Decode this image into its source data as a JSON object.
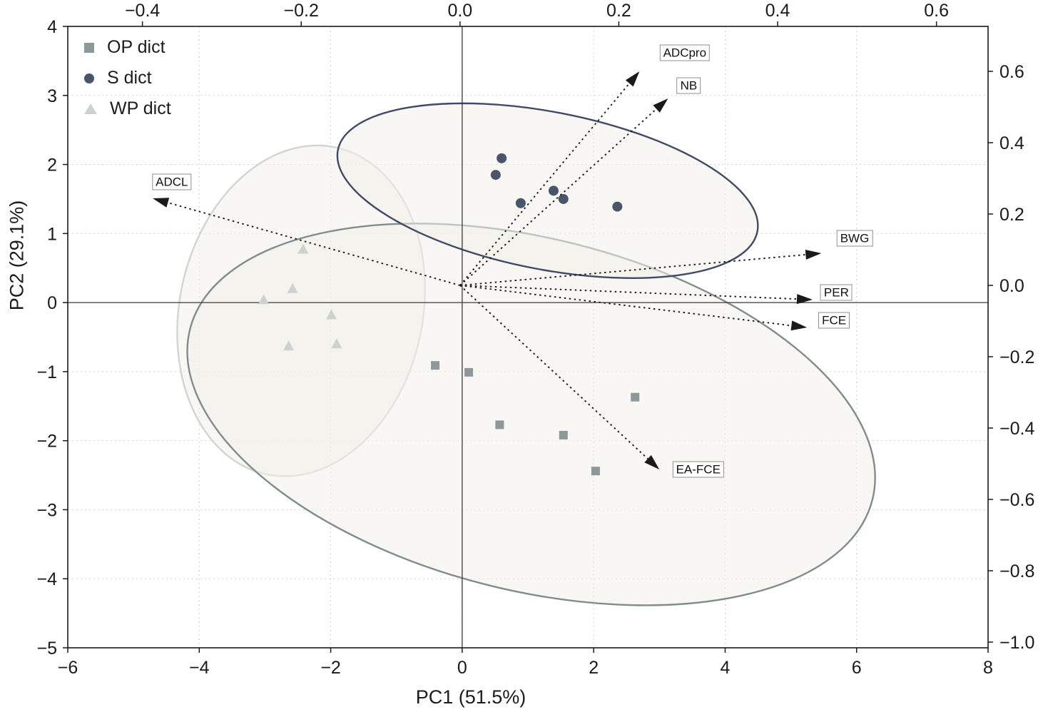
{
  "chart_data": {
    "type": "scatter",
    "title": "",
    "xlabel": "PC1 (51.5%)",
    "ylabel": "PC2 (29.1%)",
    "xlim": [
      -6,
      8
    ],
    "ylim": [
      -5,
      4
    ],
    "x_ticks": [
      -6,
      -4,
      -2,
      0,
      2,
      4,
      6,
      8
    ],
    "y_ticks": [
      4,
      3,
      2,
      1,
      0,
      -1,
      -2,
      -3,
      -4,
      -5
    ],
    "secondary_xlim": [
      -0.494,
      0.665
    ],
    "secondary_ylim": [
      -1.016,
      0.726
    ],
    "secondary_x_ticks": [
      -0.4,
      -0.2,
      0.0,
      0.2,
      0.4,
      0.6
    ],
    "secondary_y_ticks": [
      0.6,
      0.4,
      0.2,
      0.0,
      -0.2,
      -0.4,
      -0.6,
      -0.8,
      -1.0
    ],
    "grid": true,
    "legend_position": "top-left",
    "series": [
      {
        "name": "OP dict",
        "marker": "square",
        "color": "#8d989b",
        "points": [
          [
            -0.41,
            -0.91
          ],
          [
            0.1,
            -1.01
          ],
          [
            2.63,
            -1.37
          ],
          [
            0.57,
            -1.77
          ],
          [
            1.54,
            -1.92
          ],
          [
            2.03,
            -2.44
          ]
        ]
      },
      {
        "name": "S dict",
        "marker": "circle",
        "color": "#4a5569",
        "points": [
          [
            0.6,
            2.09
          ],
          [
            0.51,
            1.85
          ],
          [
            0.89,
            1.44
          ],
          [
            1.39,
            1.62
          ],
          [
            1.54,
            1.5
          ],
          [
            2.36,
            1.39
          ]
        ]
      },
      {
        "name": "WP dict",
        "marker": "triangle",
        "color": "#ccd3cf",
        "points": [
          [
            -2.42,
            0.77
          ],
          [
            -2.58,
            0.2
          ],
          [
            -3.02,
            0.04
          ],
          [
            -1.99,
            -0.18
          ],
          [
            -2.64,
            -0.63
          ],
          [
            -1.91,
            -0.6
          ]
        ]
      }
    ],
    "loadings": [
      {
        "label": "ADCpro",
        "x": 0.226,
        "y": 0.6,
        "label_x": 0.283,
        "label_y": 0.652
      },
      {
        "label": "NB",
        "x": 0.262,
        "y": 0.524,
        "label_x": 0.288,
        "label_y": 0.56
      },
      {
        "label": "ADCL",
        "x": -0.387,
        "y": 0.244,
        "label_x": -0.363,
        "label_y": 0.29
      },
      {
        "label": "BWG",
        "x": 0.455,
        "y": 0.09,
        "label_x": 0.497,
        "label_y": 0.132
      },
      {
        "label": "PER",
        "x": 0.444,
        "y": -0.04,
        "label_x": 0.474,
        "label_y": -0.02
      },
      {
        "label": "FCE",
        "x": 0.437,
        "y": -0.118,
        "label_x": 0.471,
        "label_y": -0.098
      },
      {
        "label": "EA-FCE",
        "x": 0.251,
        "y": -0.516,
        "label_x": 0.3,
        "label_y": -0.516
      }
    ],
    "ellipses": [
      {
        "group": "WP dict",
        "cx": -2.45,
        "cy": -0.12,
        "rx": 1.85,
        "ry": 2.42,
        "rotation_deg": 12,
        "stroke": "#d0d6d2"
      },
      {
        "group": "OP dict",
        "cx": 1.05,
        "cy": -1.62,
        "rx": 5.35,
        "ry": 2.55,
        "rotation_deg": 14,
        "stroke": "#7f8e8c"
      },
      {
        "group": "S dict",
        "cx": 1.3,
        "cy": 1.62,
        "rx": 3.25,
        "ry": 1.14,
        "rotation_deg": 11,
        "stroke": "#3e4a66"
      }
    ],
    "ellipse_fill": "rgba(243,240,234,0.55)",
    "arrow_color": "#1a1a1a",
    "grid_color": "#d2d2d2",
    "zero_line_color": "#3a3a3a",
    "border_color": "#1a1a1a"
  }
}
